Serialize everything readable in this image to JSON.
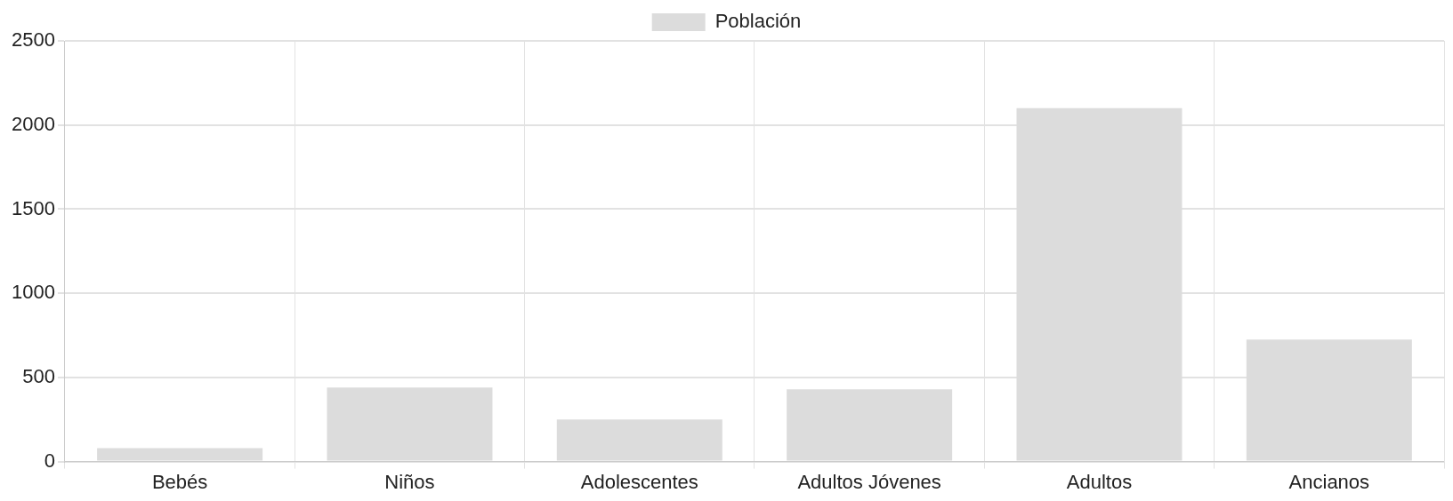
{
  "chart_data": {
    "type": "bar",
    "categories": [
      "Bebés",
      "Niños",
      "Adolescentes",
      "Adultos Jóvenes",
      "Adultos",
      "Ancianos"
    ],
    "series": [
      {
        "name": "Población",
        "color": "#dcdcdc",
        "values": [
          80,
          440,
          250,
          430,
          2100,
          725
        ]
      }
    ],
    "ylim": [
      0,
      2500
    ],
    "yticks": [
      0,
      500,
      1000,
      1500,
      2000,
      2500
    ],
    "grid": true,
    "legend": "top"
  }
}
